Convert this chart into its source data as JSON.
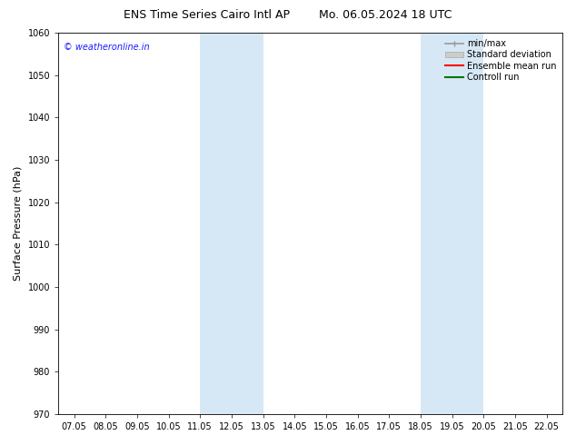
{
  "title_left": "ENS Time Series Cairo Intl AP",
  "title_right": "Mo. 06.05.2024 18 UTC",
  "ylabel": "Surface Pressure (hPa)",
  "ylim": [
    970,
    1060
  ],
  "yticks": [
    970,
    980,
    990,
    1000,
    1010,
    1020,
    1030,
    1040,
    1050,
    1060
  ],
  "xtick_labels": [
    "07.05",
    "08.05",
    "09.05",
    "10.05",
    "11.05",
    "12.05",
    "13.05",
    "14.05",
    "15.05",
    "16.05",
    "17.05",
    "18.05",
    "19.05",
    "20.05",
    "21.05",
    "22.05"
  ],
  "shaded_bands": [
    {
      "xstart": 4,
      "xend": 6,
      "color": "#d6e8f5"
    },
    {
      "xstart": 11,
      "xend": 13,
      "color": "#d6e8f5"
    }
  ],
  "watermark": "© weatheronline.in",
  "watermark_color": "#1a1aff",
  "background_color": "#ffffff",
  "plot_bg_color": "#ffffff",
  "legend_items": [
    {
      "label": "min/max",
      "color": "#999999",
      "lw": 1.2,
      "style": "minmax"
    },
    {
      "label": "Standard deviation",
      "color": "#cccccc",
      "lw": 6,
      "style": "band"
    },
    {
      "label": "Ensemble mean run",
      "color": "#ff0000",
      "lw": 1.5,
      "style": "line"
    },
    {
      "label": "Controll run",
      "color": "#007700",
      "lw": 1.5,
      "style": "line"
    }
  ],
  "title_fontsize": 9,
  "tick_fontsize": 7,
  "ylabel_fontsize": 8,
  "watermark_fontsize": 7,
  "legend_fontsize": 7
}
